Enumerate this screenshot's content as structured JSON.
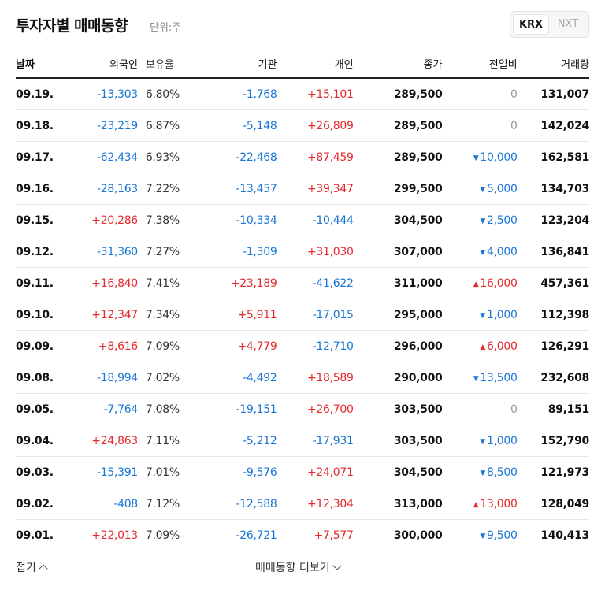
{
  "header": {
    "title": "투자자별 매매동향",
    "unit": "단위:주"
  },
  "market_tabs": [
    {
      "label": "KRX",
      "active": true
    },
    {
      "label": "NXT",
      "active": false
    }
  ],
  "columns": [
    "날짜",
    "외국인",
    "보유율",
    "기관",
    "개인",
    "종가",
    "전일비",
    "거래량"
  ],
  "rows": [
    {
      "date": "09.19.",
      "foreign": "-13,303",
      "ratio": "6.80%",
      "inst": "-1,768",
      "indiv": "+15,101",
      "close": "289,500",
      "change": "0",
      "change_dir": "flat",
      "volume": "131,007"
    },
    {
      "date": "09.18.",
      "foreign": "-23,219",
      "ratio": "6.87%",
      "inst": "-5,148",
      "indiv": "+26,809",
      "close": "289,500",
      "change": "0",
      "change_dir": "flat",
      "volume": "142,024"
    },
    {
      "date": "09.17.",
      "foreign": "-62,434",
      "ratio": "6.93%",
      "inst": "-22,468",
      "indiv": "+87,459",
      "close": "289,500",
      "change": "10,000",
      "change_dir": "down",
      "volume": "162,581"
    },
    {
      "date": "09.16.",
      "foreign": "-28,163",
      "ratio": "7.22%",
      "inst": "-13,457",
      "indiv": "+39,347",
      "close": "299,500",
      "change": "5,000",
      "change_dir": "down",
      "volume": "134,703"
    },
    {
      "date": "09.15.",
      "foreign": "+20,286",
      "ratio": "7.38%",
      "inst": "-10,334",
      "indiv": "-10,444",
      "close": "304,500",
      "change": "2,500",
      "change_dir": "down",
      "volume": "123,204"
    },
    {
      "date": "09.12.",
      "foreign": "-31,360",
      "ratio": "7.27%",
      "inst": "-1,309",
      "indiv": "+31,030",
      "close": "307,000",
      "change": "4,000",
      "change_dir": "down",
      "volume": "136,841"
    },
    {
      "date": "09.11.",
      "foreign": "+16,840",
      "ratio": "7.41%",
      "inst": "+23,189",
      "indiv": "-41,622",
      "close": "311,000",
      "change": "16,000",
      "change_dir": "up",
      "volume": "457,361"
    },
    {
      "date": "09.10.",
      "foreign": "+12,347",
      "ratio": "7.34%",
      "inst": "+5,911",
      "indiv": "-17,015",
      "close": "295,000",
      "change": "1,000",
      "change_dir": "down",
      "volume": "112,398"
    },
    {
      "date": "09.09.",
      "foreign": "+8,616",
      "ratio": "7.09%",
      "inst": "+4,779",
      "indiv": "-12,710",
      "close": "296,000",
      "change": "6,000",
      "change_dir": "up",
      "volume": "126,291"
    },
    {
      "date": "09.08.",
      "foreign": "-18,994",
      "ratio": "7.02%",
      "inst": "-4,492",
      "indiv": "+18,589",
      "close": "290,000",
      "change": "13,500",
      "change_dir": "down",
      "volume": "232,608"
    },
    {
      "date": "09.05.",
      "foreign": "-7,764",
      "ratio": "7.08%",
      "inst": "-19,151",
      "indiv": "+26,700",
      "close": "303,500",
      "change": "0",
      "change_dir": "flat",
      "volume": "89,151"
    },
    {
      "date": "09.04.",
      "foreign": "+24,863",
      "ratio": "7.11%",
      "inst": "-5,212",
      "indiv": "-17,931",
      "close": "303,500",
      "change": "1,000",
      "change_dir": "down",
      "volume": "152,790"
    },
    {
      "date": "09.03.",
      "foreign": "-15,391",
      "ratio": "7.01%",
      "inst": "-9,576",
      "indiv": "+24,071",
      "close": "304,500",
      "change": "8,500",
      "change_dir": "down",
      "volume": "121,973"
    },
    {
      "date": "09.02.",
      "foreign": "-408",
      "ratio": "7.12%",
      "inst": "-12,588",
      "indiv": "+12,304",
      "close": "313,000",
      "change": "13,000",
      "change_dir": "up",
      "volume": "128,049"
    },
    {
      "date": "09.01.",
      "foreign": "+22,013",
      "ratio": "7.09%",
      "inst": "-26,721",
      "indiv": "+7,577",
      "close": "300,000",
      "change": "9,500",
      "change_dir": "down",
      "volume": "140,413"
    }
  ],
  "footer": {
    "collapse_label": "접기",
    "more_label": "매매동향 더보기"
  },
  "colors": {
    "up": "#e5292c",
    "down": "#1976d6",
    "flat": "#999999"
  }
}
